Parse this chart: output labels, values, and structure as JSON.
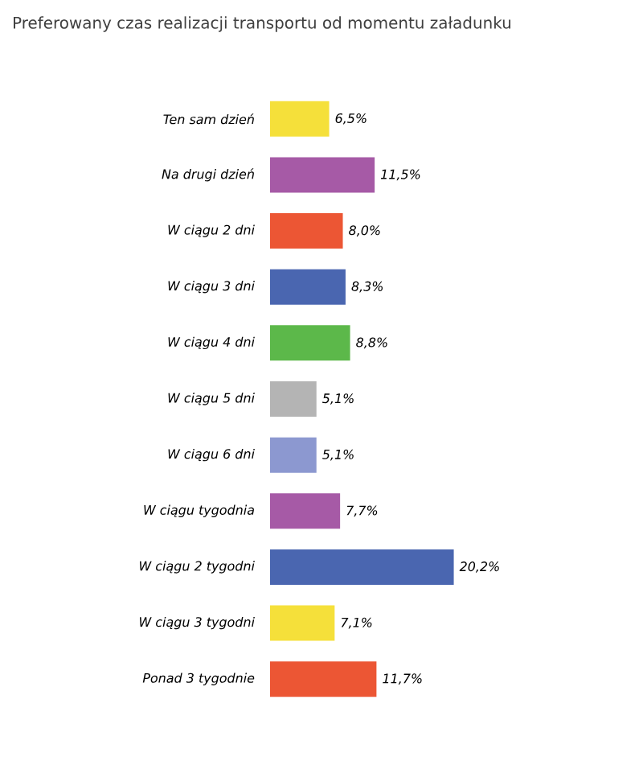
{
  "chart_data": {
    "type": "bar",
    "orientation": "horizontal",
    "title": "Preferowany czas realizacji transportu od momentu załadunku",
    "categories": [
      "Ten sam dzień",
      "Na drugi dzień",
      "W ciągu 2 dni",
      "W ciągu 3 dni",
      "W ciągu 4 dni",
      "W ciągu 5 dni",
      "W ciągu 6 dni",
      "W ciągu tygodnia",
      "W ciągu 2 tygodni",
      "W ciągu 3 tygodni",
      "Ponad 3 tygodnie"
    ],
    "values": [
      6.5,
      11.5,
      8.0,
      8.3,
      8.8,
      5.1,
      5.1,
      7.7,
      20.2,
      7.1,
      11.7
    ],
    "value_labels": [
      "6,5%",
      "11,5%",
      "8,0%",
      "8,3%",
      "8,8%",
      "5,1%",
      "5,1%",
      "7,7%",
      "20,2%",
      "7,1%",
      "11,7%"
    ],
    "colors": [
      "#f5e03a",
      "#a65aa6",
      "#ec5634",
      "#4a66b0",
      "#5cb84a",
      "#b4b4b4",
      "#8c98d0",
      "#a65aa6",
      "#4a66b0",
      "#f5e03a",
      "#ec5634"
    ]
  }
}
